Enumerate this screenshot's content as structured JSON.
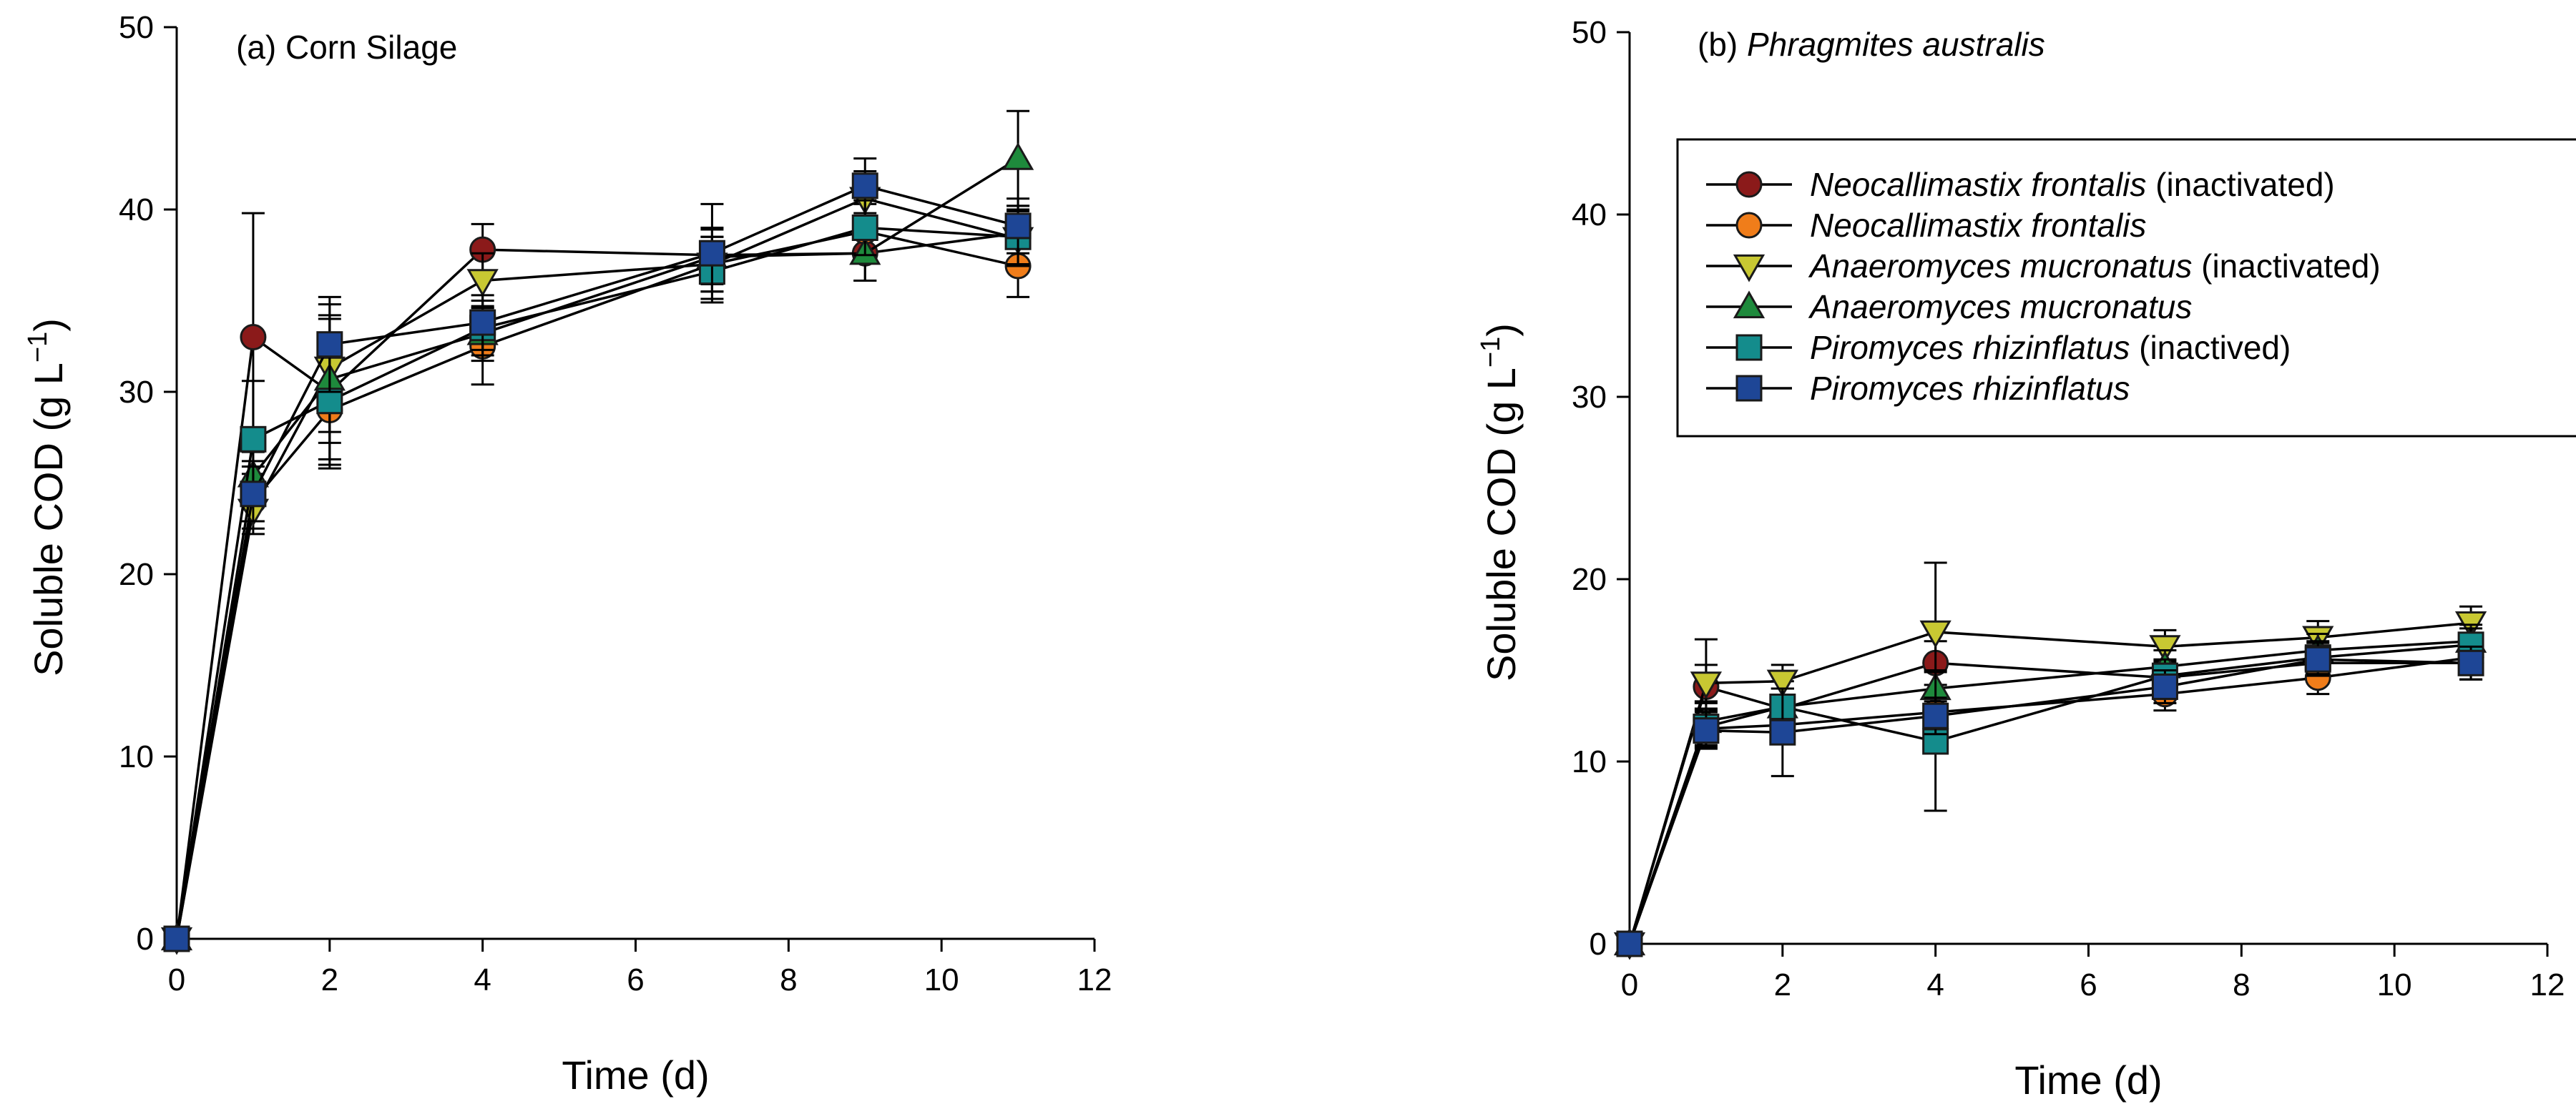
{
  "figure": {
    "colors": {
      "axis": "#000000",
      "line": "#000000",
      "marker_edge": "#1a1a1a"
    }
  },
  "legend": {
    "entries": [
      {
        "name": "Neocallimastix frontalis",
        "suffix": "(inactivated)",
        "marker": "circle",
        "color": "#8b1a1a"
      },
      {
        "name": "Neocallimastix frontalis",
        "suffix": "",
        "marker": "circle",
        "color": "#f07d1a"
      },
      {
        "name": "Anaeromyces mucronatus",
        "suffix": "(inactivated)",
        "marker": "triangle-down",
        "color": "#c8c832"
      },
      {
        "name": "Anaeromyces mucronatus",
        "suffix": "",
        "marker": "triangle-up",
        "color": "#1e8a3c"
      },
      {
        "name": "Piromyces rhizinflatus",
        "suffix": "(inactived)",
        "marker": "square",
        "color": "#148c8c"
      },
      {
        "name": "Piromyces rhizinflatus",
        "suffix": "",
        "marker": "square",
        "color": "#1e4696"
      }
    ]
  },
  "chart_data": [
    {
      "type": "line",
      "title_prefix": "(a)",
      "title": "Corn Silage",
      "title_italic": false,
      "xlabel": "Time (d)",
      "ylabel": "Soluble COD (g L",
      "ylabel_sup": "−1",
      "ylabel_close": ")",
      "xlim": [
        0,
        12
      ],
      "ylim": [
        0,
        50
      ],
      "xticks": [
        0,
        2,
        4,
        6,
        8,
        10,
        12
      ],
      "yticks": [
        0,
        10,
        20,
        30,
        40,
        50
      ],
      "grid": false,
      "x": [
        0,
        1,
        2,
        4,
        7,
        9,
        11
      ],
      "series": [
        {
          "name": "Neocallimastix frontalis (inactivated)",
          "y": [
            0,
            33.0,
            30.0,
            37.8,
            37.5,
            37.6,
            38.7
          ],
          "err": [
            0,
            6.8,
            4.0,
            1.4,
            1.5,
            1.5,
            1.5
          ]
        },
        {
          "name": "Neocallimastix frontalis",
          "y": [
            0,
            24.0,
            29.0,
            32.5,
            37.0,
            38.8,
            36.9
          ],
          "err": [
            0,
            1.5,
            3.2,
            2.1,
            1.5,
            1.5,
            1.7
          ]
        },
        {
          "name": "Anaeromyces mucronatus (inactivated)",
          "y": [
            0,
            23.5,
            31.3,
            36.1,
            37.0,
            40.6,
            38.4
          ],
          "err": [
            0,
            1.3,
            3.5,
            1.5,
            1.5,
            1.5,
            1.5
          ]
        },
        {
          "name": "Anaeromyces mucronatus",
          "y": [
            0,
            25.4,
            30.7,
            33.2,
            37.4,
            37.6,
            42.8
          ],
          "err": [
            0,
            1.3,
            3.5,
            1.5,
            1.5,
            1.5,
            2.6
          ]
        },
        {
          "name": "Piromyces rhizinflatus (inactived)",
          "y": [
            0,
            27.4,
            29.5,
            33.5,
            36.6,
            39.0,
            38.5
          ],
          "err": [
            0,
            3.2,
            3.2,
            1.5,
            1.5,
            1.5,
            1.5
          ]
        },
        {
          "name": "Piromyces rhizinflatus",
          "y": [
            0,
            24.4,
            32.6,
            33.8,
            37.6,
            41.3,
            39.1
          ],
          "err": [
            0,
            1.5,
            2.6,
            1.5,
            2.7,
            1.5,
            1.5
          ]
        }
      ]
    },
    {
      "type": "line",
      "title_prefix": "(b)",
      "title": "Phragmites australis",
      "title_italic": true,
      "xlabel": "Time (d)",
      "ylabel": "Soluble COD (g L",
      "ylabel_sup": "−1",
      "ylabel_close": ")",
      "xlim": [
        0,
        12
      ],
      "ylim": [
        0,
        50
      ],
      "xticks": [
        0,
        2,
        4,
        6,
        8,
        10,
        12
      ],
      "yticks": [
        0,
        10,
        20,
        30,
        40,
        50
      ],
      "grid": false,
      "legend_position": "top-right",
      "x": [
        0,
        1,
        2,
        4,
        7,
        9,
        11
      ],
      "series": [
        {
          "name": "Neocallimastix frontalis (inactivated)",
          "y": [
            0,
            14.1,
            12.9,
            15.4,
            14.6,
            15.4,
            15.4
          ],
          "err": [
            0,
            2.6,
            1.5,
            1.2,
            0.9,
            0.9,
            0.9
          ]
        },
        {
          "name": "Neocallimastix frontalis",
          "y": [
            0,
            11.8,
            12.0,
            12.7,
            13.7,
            14.6,
            15.7
          ],
          "err": [
            0,
            1.0,
            1.0,
            1.0,
            0.9,
            0.9,
            0.9
          ]
        },
        {
          "name": "Anaeromyces mucronatus (inactivated)",
          "y": [
            0,
            14.3,
            14.4,
            17.1,
            16.3,
            16.8,
            17.6
          ],
          "err": [
            0,
            1.0,
            0.9,
            3.8,
            0.9,
            0.9,
            0.9
          ]
        },
        {
          "name": "Anaeromyces mucronatus",
          "y": [
            0,
            12.2,
            13.0,
            14.0,
            15.2,
            16.1,
            16.6
          ],
          "err": [
            0,
            1.0,
            1.0,
            1.0,
            0.9,
            0.9,
            0.9
          ]
        },
        {
          "name": "Piromyces rhizinflatus (inactived)",
          "y": [
            0,
            11.9,
            13.0,
            11.1,
            14.7,
            15.7,
            16.4
          ],
          "err": [
            0,
            1.0,
            1.0,
            3.8,
            0.9,
            0.9,
            0.9
          ]
        },
        {
          "name": "Piromyces rhizinflatus",
          "y": [
            0,
            11.7,
            11.6,
            12.5,
            14.1,
            15.6,
            15.4
          ],
          "err": [
            0,
            1.0,
            2.4,
            1.0,
            0.9,
            0.9,
            0.9
          ]
        }
      ]
    }
  ]
}
